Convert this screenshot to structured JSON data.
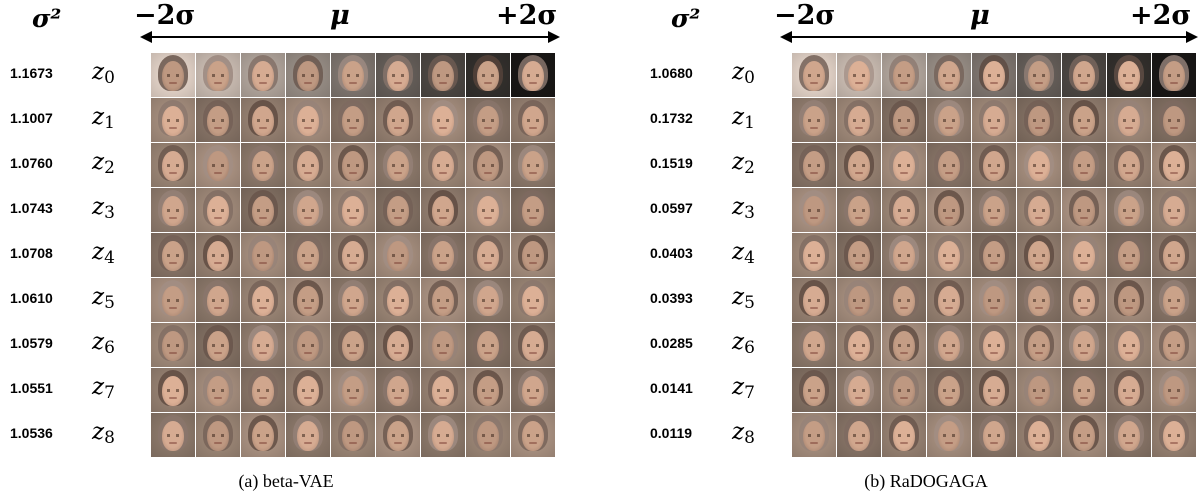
{
  "axis": {
    "left": "−2σ",
    "center": "μ",
    "right": "+2σ",
    "variance_header": "σ²"
  },
  "panels": [
    {
      "caption": "(a) beta-VAE",
      "variances": [
        "1.1673",
        "1.1007",
        "1.0760",
        "1.0743",
        "1.0708",
        "1.0610",
        "1.0579",
        "1.0551",
        "1.0536"
      ],
      "latents": [
        {
          "name": "z",
          "sub": "0"
        },
        {
          "name": "z",
          "sub": "1"
        },
        {
          "name": "z",
          "sub": "2"
        },
        {
          "name": "z",
          "sub": "3"
        },
        {
          "name": "z",
          "sub": "4"
        },
        {
          "name": "z",
          "sub": "5"
        },
        {
          "name": "z",
          "sub": "6"
        },
        {
          "name": "z",
          "sub": "7"
        },
        {
          "name": "z",
          "sub": "8"
        }
      ]
    },
    {
      "caption": "(b) RaDOGAGA",
      "variances": [
        "1.0680",
        "0.1732",
        "0.1519",
        "0.0597",
        "0.0403",
        "0.0393",
        "0.0285",
        "0.0141",
        "0.0119"
      ],
      "latents": [
        {
          "name": "z",
          "sub": "0"
        },
        {
          "name": "z",
          "sub": "1"
        },
        {
          "name": "z",
          "sub": "2"
        },
        {
          "name": "z",
          "sub": "3"
        },
        {
          "name": "z",
          "sub": "4"
        },
        {
          "name": "z",
          "sub": "5"
        },
        {
          "name": "z",
          "sub": "6"
        },
        {
          "name": "z",
          "sub": "7"
        },
        {
          "name": "z",
          "sub": "8"
        }
      ]
    }
  ],
  "colors": {
    "skin": "#c9a287",
    "bg_mid": "#8a7566",
    "bg_light": "#d8d2cc",
    "bg_dark": "#2a1c14"
  }
}
